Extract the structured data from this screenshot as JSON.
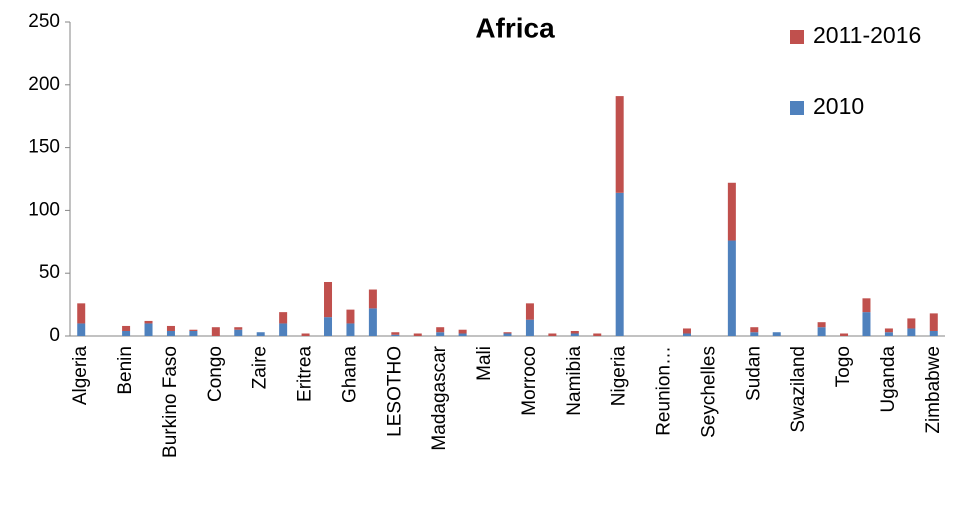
{
  "chart_data": {
    "type": "stacked_bar",
    "title": "Africa",
    "categories": [
      "Algeria",
      null,
      "Benin",
      null,
      "Burkino Faso",
      null,
      "Congo",
      null,
      "Zaire",
      null,
      "Eritrea",
      null,
      "Ghana",
      null,
      "LESOTHO",
      null,
      "Madagascar",
      null,
      "Mali",
      null,
      "Morroco",
      null,
      "Namibia",
      null,
      "Nigeria",
      null,
      "Reunion…",
      null,
      "Seychelles",
      null,
      "Sudan",
      null,
      "Swaziland",
      null,
      "Togo",
      null,
      "Uganda",
      null,
      "Zimbabwe"
    ],
    "series": [
      {
        "name": "2010",
        "color": "#4f81bd",
        "values": [
          10,
          0,
          4,
          10,
          4,
          4,
          0,
          5,
          3,
          10,
          0,
          15,
          10,
          22,
          1,
          0,
          3,
          2,
          0,
          2,
          13,
          0,
          2,
          0,
          114,
          0,
          0,
          2,
          0,
          76,
          3,
          3,
          0,
          7,
          0,
          19,
          3,
          6,
          4
        ]
      },
      {
        "name": "2011-2016",
        "color": "#c0504d",
        "values": [
          16,
          0,
          4,
          2,
          4,
          1,
          7,
          2,
          0,
          9,
          2,
          28,
          11,
          15,
          2,
          2,
          4,
          3,
          0,
          1,
          13,
          2,
          2,
          2,
          77,
          0,
          0,
          4,
          0,
          46,
          4,
          0,
          0,
          4,
          2,
          11,
          3,
          8,
          14
        ]
      }
    ],
    "ylim": [
      0,
      250
    ],
    "yticks": [
      0,
      50,
      100,
      150,
      200,
      250
    ],
    "grid": false,
    "legend": "top-right"
  }
}
